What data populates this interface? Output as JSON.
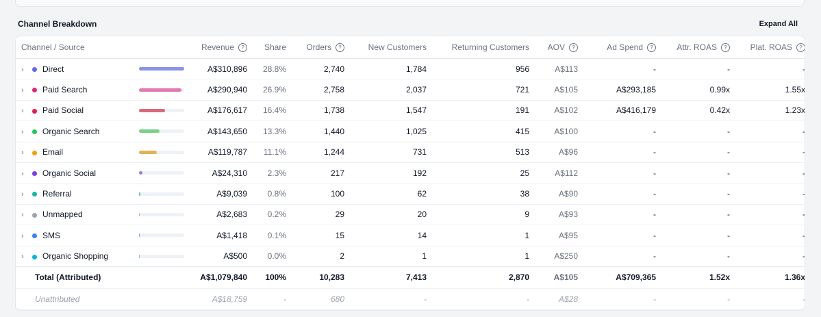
{
  "section": {
    "title": "Channel Breakdown",
    "expand_label": "Expand All"
  },
  "columns": {
    "channel": "Channel / Source",
    "revenue": "Revenue",
    "share": "Share",
    "orders": "Orders",
    "new_customers": "New Customers",
    "returning_customers": "Returning Customers",
    "aov": "AOV",
    "ad_spend": "Ad Spend",
    "attr_roas": "Attr. ROAS",
    "plat_roas": "Plat. ROAS",
    "help_glyph": "?"
  },
  "chevron_glyph": "›",
  "rows": [
    {
      "name": "Direct",
      "color": "#6366f1",
      "bar_color": "#8b93e6",
      "share_frac": 1.0,
      "revenue": "A$310,896",
      "share": "28.8%",
      "orders": "2,740",
      "new": "1,784",
      "returning": "956",
      "aov": "A$113",
      "ad_spend": "-",
      "attr_roas": "-",
      "plat_roas": "-"
    },
    {
      "name": "Paid Search",
      "color": "#db2777",
      "bar_color": "#e07bb1",
      "share_frac": 0.935,
      "revenue": "A$290,940",
      "share": "26.9%",
      "orders": "2,758",
      "new": "2,037",
      "returning": "721",
      "aov": "A$105",
      "ad_spend": "A$293,185",
      "attr_roas": "0.99x",
      "plat_roas": "1.55x"
    },
    {
      "name": "Paid Social",
      "color": "#e11d48",
      "bar_color": "#d9687a",
      "share_frac": 0.57,
      "revenue": "A$176,617",
      "share": "16.4%",
      "orders": "1,738",
      "new": "1,547",
      "returning": "191",
      "aov": "A$102",
      "ad_spend": "A$416,179",
      "attr_roas": "0.42x",
      "plat_roas": "1.23x"
    },
    {
      "name": "Organic Search",
      "color": "#22c55e",
      "bar_color": "#7ccf8a",
      "share_frac": 0.46,
      "revenue": "A$143,650",
      "share": "13.3%",
      "orders": "1,440",
      "new": "1,025",
      "returning": "415",
      "aov": "A$100",
      "ad_spend": "-",
      "attr_roas": "-",
      "plat_roas": "-"
    },
    {
      "name": "Email",
      "color": "#f59e0b",
      "bar_color": "#e4b25a",
      "share_frac": 0.39,
      "revenue": "A$119,787",
      "share": "11.1%",
      "orders": "1,244",
      "new": "731",
      "returning": "513",
      "aov": "A$96",
      "ad_spend": "-",
      "attr_roas": "-",
      "plat_roas": "-"
    },
    {
      "name": "Organic Social",
      "color": "#7c3aed",
      "bar_color": "#9b7be0",
      "share_frac": 0.08,
      "revenue": "A$24,310",
      "share": "2.3%",
      "orders": "217",
      "new": "192",
      "returning": "25",
      "aov": "A$112",
      "ad_spend": "-",
      "attr_roas": "-",
      "plat_roas": "-"
    },
    {
      "name": "Referral",
      "color": "#14b8a6",
      "bar_color": "#5fc7b8",
      "share_frac": 0.03,
      "revenue": "A$9,039",
      "share": "0.8%",
      "orders": "100",
      "new": "62",
      "returning": "38",
      "aov": "A$90",
      "ad_spend": "-",
      "attr_roas": "-",
      "plat_roas": "-"
    },
    {
      "name": "Unmapped",
      "color": "#9ca3af",
      "bar_color": "#b7bcc4",
      "share_frac": 0.01,
      "revenue": "A$2,683",
      "share": "0.2%",
      "orders": "29",
      "new": "20",
      "returning": "9",
      "aov": "A$93",
      "ad_spend": "-",
      "attr_roas": "-",
      "plat_roas": "-"
    },
    {
      "name": "SMS",
      "color": "#3b82f6",
      "bar_color": "#7aa5e8",
      "share_frac": 0.005,
      "revenue": "A$1,418",
      "share": "0.1%",
      "orders": "15",
      "new": "14",
      "returning": "1",
      "aov": "A$95",
      "ad_spend": "-",
      "attr_roas": "-",
      "plat_roas": "-"
    },
    {
      "name": "Organic Shopping",
      "color": "#06b6d4",
      "bar_color": "#6cc7d8",
      "share_frac": 0.003,
      "revenue": "A$500",
      "share": "0.0%",
      "orders": "2",
      "new": "1",
      "returning": "1",
      "aov": "A$250",
      "ad_spend": "-",
      "attr_roas": "-",
      "plat_roas": "-"
    }
  ],
  "total": {
    "name": "Total (Attributed)",
    "revenue": "A$1,079,840",
    "share": "100%",
    "orders": "10,283",
    "new": "7,413",
    "returning": "2,870",
    "aov": "A$105",
    "ad_spend": "A$709,365",
    "attr_roas": "1.52x",
    "plat_roas": "1.36x"
  },
  "unattributed": {
    "name": "Unattributed",
    "revenue": "A$18,759",
    "share": "-",
    "orders": "680",
    "new": "-",
    "returning": "-",
    "aov": "A$28",
    "ad_spend": "-",
    "attr_roas": "-",
    "plat_roas": "-"
  }
}
